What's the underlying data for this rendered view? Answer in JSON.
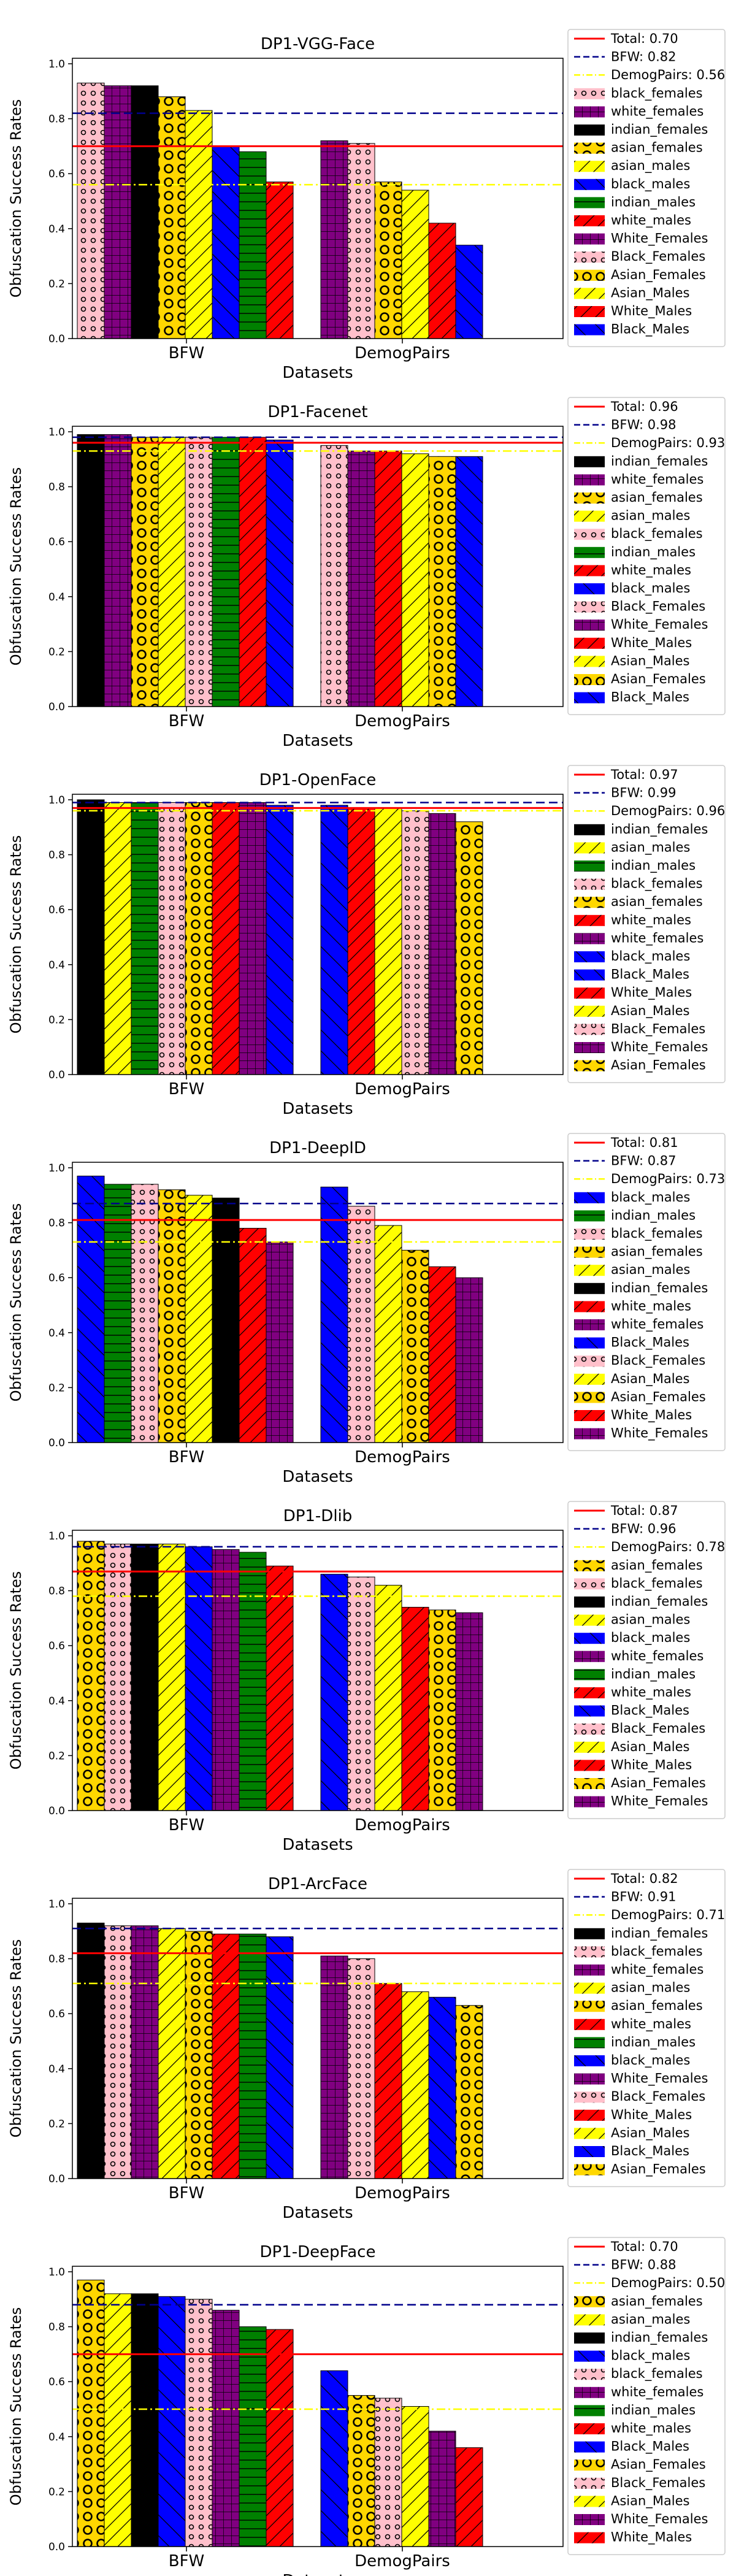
{
  "shared": {
    "xlabel": "Datasets",
    "ylabel": "Obfuscation Success Rates",
    "yticks": [
      "0.0",
      "0.2",
      "0.4",
      "0.6",
      "0.8",
      "1.0"
    ],
    "ylim": [
      0,
      1.02
    ]
  },
  "styles": {
    "black_females": {
      "color": "#ffc0cb",
      "hatch": "circles"
    },
    "white_females": {
      "color": "#800080",
      "hatch": "grid"
    },
    "indian_females": {
      "color": "#000000",
      "hatch": "none"
    },
    "asian_females": {
      "color": "#ffd700",
      "hatch": "rings"
    },
    "asian_males": {
      "color": "#ffff00",
      "hatch": "diag"
    },
    "indian_males": {
      "color": "#008000",
      "hatch": "hlines"
    },
    "white_males": {
      "color": "#ff0000",
      "hatch": "diag"
    },
    "black_males": {
      "color": "#0000ff",
      "hatch": "backdiag"
    },
    "Black_Females": {
      "color": "#ffc0cb",
      "hatch": "circles"
    },
    "Asian_Females": {
      "color": "#ffd700",
      "hatch": "rings"
    },
    "Asian_Males": {
      "color": "#ffff00",
      "hatch": "diag"
    },
    "White_Males": {
      "color": "#ff0000",
      "hatch": "diag"
    },
    "White_Females": {
      "color": "#800080",
      "hatch": "grid"
    },
    "Black_Males": {
      "color": "#0000ff",
      "hatch": "backdiag"
    }
  },
  "line_colors": {
    "total": "#ff0000",
    "bfw": "#00008b",
    "demog": "#ffff00"
  },
  "chart_data": [
    {
      "type": "bar",
      "title": "DP1-VGG-Face",
      "categories": [
        "BFW",
        "DemogPairs"
      ],
      "refs": [
        {
          "key": "total",
          "label": "Total: 0.70",
          "value": 0.7
        },
        {
          "key": "bfw",
          "label": "BFW: 0.82",
          "value": 0.82
        },
        {
          "key": "demog",
          "label": "DemogPairs: 0.56",
          "value": 0.56
        }
      ],
      "bfw": [
        {
          "name": "black_females",
          "value": 0.93
        },
        {
          "name": "white_females",
          "value": 0.92
        },
        {
          "name": "indian_females",
          "value": 0.92
        },
        {
          "name": "asian_females",
          "value": 0.88
        },
        {
          "name": "asian_males",
          "value": 0.83
        },
        {
          "name": "black_males",
          "value": 0.7
        },
        {
          "name": "indian_males",
          "value": 0.68
        },
        {
          "name": "white_males",
          "value": 0.57
        }
      ],
      "demog": [
        {
          "name": "White_Females",
          "value": 0.72
        },
        {
          "name": "Black_Females",
          "value": 0.71
        },
        {
          "name": "Asian_Females",
          "value": 0.57
        },
        {
          "name": "Asian_Males",
          "value": 0.54
        },
        {
          "name": "White_Males",
          "value": 0.42
        },
        {
          "name": "Black_Males",
          "value": 0.34
        }
      ]
    },
    {
      "type": "bar",
      "title": "DP1-Facenet",
      "categories": [
        "BFW",
        "DemogPairs"
      ],
      "refs": [
        {
          "key": "total",
          "label": "Total: 0.96",
          "value": 0.96
        },
        {
          "key": "bfw",
          "label": "BFW: 0.98",
          "value": 0.98
        },
        {
          "key": "demog",
          "label": "DemogPairs: 0.93",
          "value": 0.93
        }
      ],
      "bfw": [
        {
          "name": "indian_females",
          "value": 0.99
        },
        {
          "name": "white_females",
          "value": 0.99
        },
        {
          "name": "asian_females",
          "value": 0.98
        },
        {
          "name": "asian_males",
          "value": 0.98
        },
        {
          "name": "black_females",
          "value": 0.98
        },
        {
          "name": "indian_males",
          "value": 0.98
        },
        {
          "name": "white_males",
          "value": 0.98
        },
        {
          "name": "black_males",
          "value": 0.97
        }
      ],
      "demog": [
        {
          "name": "Black_Females",
          "value": 0.95
        },
        {
          "name": "White_Females",
          "value": 0.93
        },
        {
          "name": "White_Males",
          "value": 0.93
        },
        {
          "name": "Asian_Males",
          "value": 0.92
        },
        {
          "name": "Asian_Females",
          "value": 0.91
        },
        {
          "name": "Black_Males",
          "value": 0.91
        }
      ]
    },
    {
      "type": "bar",
      "title": "DP1-OpenFace",
      "categories": [
        "BFW",
        "DemogPairs"
      ],
      "refs": [
        {
          "key": "total",
          "label": "Total: 0.97",
          "value": 0.97
        },
        {
          "key": "bfw",
          "label": "BFW: 0.99",
          "value": 0.99
        },
        {
          "key": "demog",
          "label": "DemogPairs: 0.96",
          "value": 0.96
        }
      ],
      "bfw": [
        {
          "name": "indian_females",
          "value": 1.0
        },
        {
          "name": "asian_males",
          "value": 0.99
        },
        {
          "name": "indian_males",
          "value": 0.99
        },
        {
          "name": "black_females",
          "value": 0.99
        },
        {
          "name": "asian_females",
          "value": 0.99
        },
        {
          "name": "white_males",
          "value": 0.99
        },
        {
          "name": "white_females",
          "value": 0.99
        },
        {
          "name": "black_males",
          "value": 0.98
        }
      ],
      "demog": [
        {
          "name": "Black_Males",
          "value": 0.98
        },
        {
          "name": "White_Males",
          "value": 0.97
        },
        {
          "name": "Asian_Males",
          "value": 0.97
        },
        {
          "name": "Black_Females",
          "value": 0.96
        },
        {
          "name": "White_Females",
          "value": 0.95
        },
        {
          "name": "Asian_Females",
          "value": 0.92
        }
      ]
    },
    {
      "type": "bar",
      "title": "DP1-DeepID",
      "categories": [
        "BFW",
        "DemogPairs"
      ],
      "refs": [
        {
          "key": "total",
          "label": "Total: 0.81",
          "value": 0.81
        },
        {
          "key": "bfw",
          "label": "BFW: 0.87",
          "value": 0.87
        },
        {
          "key": "demog",
          "label": "DemogPairs: 0.73",
          "value": 0.73
        }
      ],
      "bfw": [
        {
          "name": "black_males",
          "value": 0.97
        },
        {
          "name": "indian_males",
          "value": 0.94
        },
        {
          "name": "black_females",
          "value": 0.94
        },
        {
          "name": "asian_females",
          "value": 0.92
        },
        {
          "name": "asian_males",
          "value": 0.9
        },
        {
          "name": "indian_females",
          "value": 0.89
        },
        {
          "name": "white_males",
          "value": 0.78
        },
        {
          "name": "white_females",
          "value": 0.73
        }
      ],
      "demog": [
        {
          "name": "Black_Males",
          "value": 0.93
        },
        {
          "name": "Black_Females",
          "value": 0.86
        },
        {
          "name": "Asian_Males",
          "value": 0.79
        },
        {
          "name": "Asian_Females",
          "value": 0.7
        },
        {
          "name": "White_Males",
          "value": 0.64
        },
        {
          "name": "White_Females",
          "value": 0.6
        }
      ]
    },
    {
      "type": "bar",
      "title": "DP1-Dlib",
      "categories": [
        "BFW",
        "DemogPairs"
      ],
      "refs": [
        {
          "key": "total",
          "label": "Total: 0.87",
          "value": 0.87
        },
        {
          "key": "bfw",
          "label": "BFW: 0.96",
          "value": 0.96
        },
        {
          "key": "demog",
          "label": "DemogPairs: 0.78",
          "value": 0.78
        }
      ],
      "bfw": [
        {
          "name": "asian_females",
          "value": 0.98
        },
        {
          "name": "black_females",
          "value": 0.97
        },
        {
          "name": "indian_females",
          "value": 0.97
        },
        {
          "name": "asian_males",
          "value": 0.97
        },
        {
          "name": "black_males",
          "value": 0.96
        },
        {
          "name": "white_females",
          "value": 0.95
        },
        {
          "name": "indian_males",
          "value": 0.94
        },
        {
          "name": "white_males",
          "value": 0.89
        }
      ],
      "demog": [
        {
          "name": "Black_Males",
          "value": 0.86
        },
        {
          "name": "Black_Females",
          "value": 0.85
        },
        {
          "name": "Asian_Males",
          "value": 0.82
        },
        {
          "name": "White_Males",
          "value": 0.74
        },
        {
          "name": "Asian_Females",
          "value": 0.73
        },
        {
          "name": "White_Females",
          "value": 0.72
        }
      ]
    },
    {
      "type": "bar",
      "title": "DP1-ArcFace",
      "categories": [
        "BFW",
        "DemogPairs"
      ],
      "refs": [
        {
          "key": "total",
          "label": "Total: 0.82",
          "value": 0.82
        },
        {
          "key": "bfw",
          "label": "BFW: 0.91",
          "value": 0.91
        },
        {
          "key": "demog",
          "label": "DemogPairs: 0.71",
          "value": 0.71
        }
      ],
      "bfw": [
        {
          "name": "indian_females",
          "value": 0.93
        },
        {
          "name": "black_females",
          "value": 0.92
        },
        {
          "name": "white_females",
          "value": 0.92
        },
        {
          "name": "asian_males",
          "value": 0.91
        },
        {
          "name": "asian_females",
          "value": 0.9
        },
        {
          "name": "white_males",
          "value": 0.89
        },
        {
          "name": "indian_males",
          "value": 0.89
        },
        {
          "name": "black_males",
          "value": 0.88
        }
      ],
      "demog": [
        {
          "name": "White_Females",
          "value": 0.81
        },
        {
          "name": "Black_Females",
          "value": 0.8
        },
        {
          "name": "White_Males",
          "value": 0.71
        },
        {
          "name": "Asian_Males",
          "value": 0.68
        },
        {
          "name": "Black_Males",
          "value": 0.66
        },
        {
          "name": "Asian_Females",
          "value": 0.63
        }
      ]
    },
    {
      "type": "bar",
      "title": "DP1-DeepFace",
      "categories": [
        "BFW",
        "DemogPairs"
      ],
      "refs": [
        {
          "key": "total",
          "label": "Total: 0.70",
          "value": 0.7
        },
        {
          "key": "bfw",
          "label": "BFW: 0.88",
          "value": 0.88
        },
        {
          "key": "demog",
          "label": "DemogPairs: 0.50",
          "value": 0.5
        }
      ],
      "bfw": [
        {
          "name": "asian_females",
          "value": 0.97
        },
        {
          "name": "asian_males",
          "value": 0.92
        },
        {
          "name": "indian_females",
          "value": 0.92
        },
        {
          "name": "black_males",
          "value": 0.91
        },
        {
          "name": "black_females",
          "value": 0.9
        },
        {
          "name": "white_females",
          "value": 0.86
        },
        {
          "name": "indian_males",
          "value": 0.8
        },
        {
          "name": "white_males",
          "value": 0.79
        }
      ],
      "demog": [
        {
          "name": "Black_Males",
          "value": 0.64
        },
        {
          "name": "Asian_Females",
          "value": 0.55
        },
        {
          "name": "Black_Females",
          "value": 0.54
        },
        {
          "name": "Asian_Males",
          "value": 0.51
        },
        {
          "name": "White_Females",
          "value": 0.42
        },
        {
          "name": "White_Males",
          "value": 0.36
        }
      ]
    }
  ]
}
